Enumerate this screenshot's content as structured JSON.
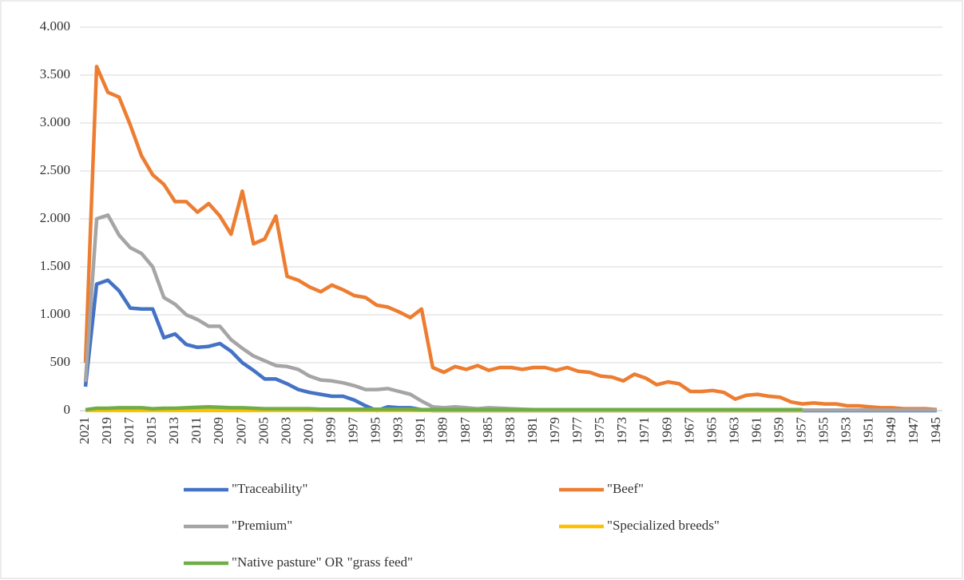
{
  "chart_data": {
    "type": "line",
    "categories": [
      "2021",
      null,
      "2019",
      null,
      "2017",
      null,
      "2015",
      null,
      "2013",
      null,
      "2011",
      null,
      "2009",
      null,
      "2007",
      null,
      "2005",
      null,
      "2003",
      null,
      "2001",
      null,
      "1999",
      null,
      "1997",
      null,
      "1995",
      null,
      "1993",
      null,
      "1991",
      null,
      "1989",
      null,
      "1987",
      null,
      "1985",
      null,
      "1983",
      null,
      "1981",
      null,
      "1979",
      null,
      "1977",
      null,
      "1975",
      null,
      "1973",
      null,
      "1971",
      null,
      "1969",
      null,
      "1967",
      null,
      "1965",
      null,
      "1963",
      null,
      "1961",
      null,
      "1959",
      null,
      "1957",
      null,
      "1955",
      null,
      "1953",
      null,
      "1951",
      null,
      "1949",
      null,
      "1947",
      null,
      "1945"
    ],
    "series": [
      {
        "name": "\"Traceability\"",
        "color": "#4472c4",
        "values": [
          250,
          1320,
          1360,
          1250,
          1070,
          1060,
          1060,
          760,
          800,
          690,
          660,
          670,
          700,
          620,
          500,
          420,
          330,
          330,
          280,
          220,
          190,
          170,
          150,
          150,
          110,
          50,
          0,
          40,
          30,
          30,
          10,
          0,
          0,
          0,
          0,
          0,
          0,
          0,
          0,
          0,
          0,
          0,
          0,
          0,
          0,
          0,
          0,
          0,
          0,
          0,
          0,
          0,
          0,
          0,
          0,
          0,
          0,
          0,
          0,
          0,
          0,
          0,
          0,
          0,
          0,
          0,
          0,
          0,
          0,
          0,
          0,
          0,
          0,
          0,
          0,
          0,
          0
        ]
      },
      {
        "name": "\"Beef\"",
        "color": "#ed7d31",
        "values": [
          500,
          3590,
          3320,
          3270,
          2980,
          2660,
          2460,
          2360,
          2180,
          2180,
          2070,
          2160,
          2030,
          1840,
          2290,
          1740,
          1790,
          2030,
          1400,
          1360,
          1290,
          1240,
          1310,
          1260,
          1200,
          1180,
          1100,
          1080,
          1030,
          970,
          1060,
          450,
          400,
          460,
          430,
          470,
          420,
          450,
          450,
          430,
          450,
          450,
          420,
          450,
          410,
          400,
          360,
          350,
          310,
          380,
          340,
          270,
          300,
          280,
          200,
          200,
          210,
          190,
          120,
          160,
          170,
          150,
          140,
          90,
          70,
          80,
          70,
          70,
          50,
          50,
          40,
          30,
          30,
          20,
          20,
          20,
          10
        ]
      },
      {
        "name": "\"Premium\"",
        "color": "#a5a5a5",
        "values": [
          300,
          2000,
          2040,
          1830,
          1700,
          1640,
          1500,
          1180,
          1110,
          1000,
          950,
          880,
          880,
          740,
          650,
          570,
          520,
          470,
          460,
          430,
          360,
          320,
          310,
          290,
          260,
          220,
          220,
          230,
          200,
          170,
          100,
          40,
          30,
          40,
          30,
          20,
          30,
          25,
          20,
          15,
          10,
          10,
          10,
          10,
          10,
          10,
          10,
          10,
          10,
          5,
          5,
          5,
          10,
          5,
          5,
          5,
          5,
          5,
          5,
          5,
          5,
          5,
          5,
          5,
          5,
          5,
          5,
          5,
          5,
          5,
          5,
          5,
          5,
          5,
          5,
          5,
          5
        ]
      },
      {
        "name": "\"Specialized breeds\"",
        "color": "#ffc000",
        "values": [
          2,
          2,
          2,
          2,
          2,
          2,
          2,
          2,
          2,
          2,
          2,
          2,
          2,
          2,
          2,
          2,
          2,
          2,
          2,
          2,
          2,
          2,
          2,
          2,
          2,
          2,
          2,
          2,
          2,
          2,
          2,
          2,
          2,
          2,
          2,
          2,
          2,
          2,
          2,
          2,
          2,
          2,
          2,
          2,
          2,
          2,
          2,
          2,
          2,
          2,
          2,
          2,
          2,
          2,
          2,
          2,
          2,
          2,
          2,
          2,
          2,
          2,
          2,
          2,
          2,
          null,
          null,
          null,
          null,
          null,
          null,
          null,
          null,
          null,
          null,
          null,
          null
        ]
      },
      {
        "name": "\"Native pasture\" OR \"grass feed\"",
        "color": "#70ad47",
        "values": [
          10,
          25,
          25,
          30,
          30,
          30,
          20,
          25,
          25,
          30,
          35,
          40,
          35,
          30,
          30,
          25,
          20,
          20,
          20,
          20,
          20,
          15,
          15,
          15,
          15,
          15,
          15,
          15,
          15,
          15,
          10,
          10,
          10,
          10,
          10,
          10,
          10,
          10,
          10,
          10,
          10,
          10,
          10,
          10,
          10,
          10,
          10,
          10,
          10,
          10,
          10,
          10,
          10,
          10,
          10,
          10,
          10,
          10,
          10,
          10,
          10,
          10,
          10,
          10,
          10,
          null,
          null,
          null,
          null,
          null,
          null,
          null,
          null,
          null,
          null,
          null,
          null
        ]
      }
    ],
    "ylim": [
      0,
      4000
    ],
    "yticks": [
      0,
      500,
      {
        "value": 1000,
        "label": "1.000"
      },
      {
        "value": 1500,
        "label": "1.500"
      },
      {
        "value": 2000,
        "label": "2.000"
      },
      {
        "value": 2500,
        "label": "2.500"
      },
      {
        "value": 3000,
        "label": "3.000"
      },
      {
        "value": 3500,
        "label": "3.500"
      },
      {
        "value": 4000,
        "label": "4.000"
      }
    ],
    "grid": true
  }
}
